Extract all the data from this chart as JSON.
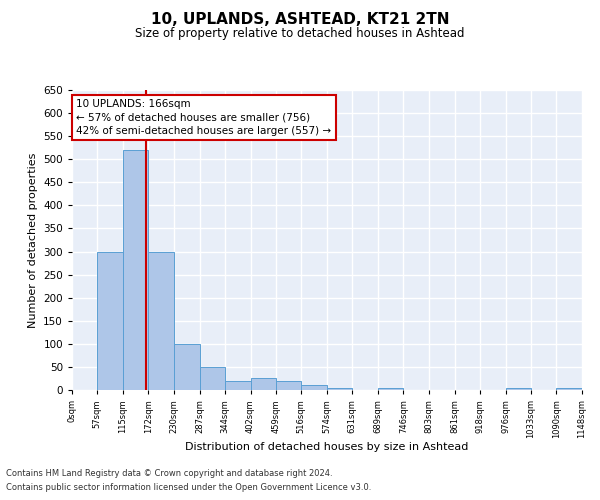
{
  "title1": "10, UPLANDS, ASHTEAD, KT21 2TN",
  "title2": "Size of property relative to detached houses in Ashtead",
  "xlabel": "Distribution of detached houses by size in Ashtead",
  "ylabel": "Number of detached properties",
  "footer1": "Contains HM Land Registry data © Crown copyright and database right 2024.",
  "footer2": "Contains public sector information licensed under the Open Government Licence v3.0.",
  "annotation_title": "10 UPLANDS: 166sqm",
  "annotation_line1": "← 57% of detached houses are smaller (756)",
  "annotation_line2": "42% of semi-detached houses are larger (557) →",
  "property_size": 166,
  "bin_edges": [
    0,
    57,
    115,
    172,
    230,
    287,
    344,
    402,
    459,
    516,
    574,
    631,
    689,
    746,
    803,
    861,
    918,
    976,
    1033,
    1090,
    1148
  ],
  "bin_counts": [
    0,
    300,
    520,
    300,
    100,
    50,
    20,
    25,
    20,
    10,
    5,
    0,
    5,
    0,
    0,
    0,
    0,
    5,
    0,
    5
  ],
  "bar_color": "#aec6e8",
  "bar_edge_color": "#5a9fd4",
  "ref_line_color": "#cc0000",
  "annotation_box_color": "#ffffff",
  "annotation_box_edge": "#cc0000",
  "bg_color": "#e8eef8",
  "grid_color": "#ffffff",
  "ylim": [
    0,
    650
  ],
  "yticks": [
    0,
    50,
    100,
    150,
    200,
    250,
    300,
    350,
    400,
    450,
    500,
    550,
    600,
    650
  ]
}
